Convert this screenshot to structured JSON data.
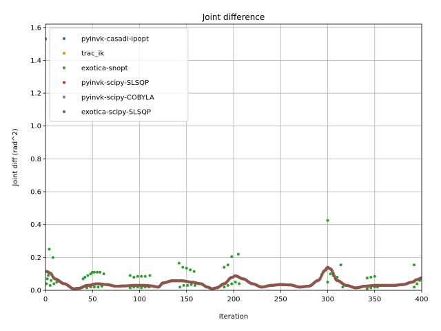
{
  "chart_data": {
    "type": "scatter",
    "title": "Joint difference",
    "xlabel": "Iteration",
    "ylabel": "Joint diff (rad^2)",
    "xlim": [
      0,
      400
    ],
    "ylim": [
      0,
      1.62
    ],
    "xticks": [
      0,
      50,
      100,
      150,
      200,
      250,
      300,
      350,
      400
    ],
    "yticks": [
      0.0,
      0.2,
      0.4,
      0.6,
      0.8,
      1.0,
      1.2,
      1.4,
      1.6
    ],
    "xtick_labels": [
      "0",
      "50",
      "100",
      "150",
      "200",
      "250",
      "300",
      "350",
      "400"
    ],
    "ytick_labels": [
      "0.0",
      "0.2",
      "0.4",
      "0.6",
      "0.8",
      "1.0",
      "1.2",
      "1.4",
      "1.6"
    ],
    "grid": true,
    "legend_position": "upper-left",
    "series": [
      {
        "name": "pyinvk-casadi-ipopt",
        "color": "#1f77b4",
        "curve": "main",
        "points": [
          [
            0,
            1.53
          ]
        ]
      },
      {
        "name": "trac_ik",
        "color": "#ff7f0e",
        "curve": "main",
        "points": [
          [
            0,
            1.53
          ]
        ]
      },
      {
        "name": "exotica-snopt",
        "color": "#2ca02c",
        "curve": "main",
        "points": [
          [
            0,
            1.53
          ],
          [
            1,
            0.04
          ],
          [
            2,
            0.07
          ],
          [
            3,
            0.09
          ],
          [
            4,
            0.25
          ],
          [
            5,
            0.03
          ],
          [
            6,
            0.06
          ],
          [
            8,
            0.2
          ],
          [
            9,
            0.04
          ],
          [
            10,
            0.07
          ],
          [
            12,
            0.05
          ],
          [
            40,
            0.07
          ],
          [
            42,
            0.08
          ],
          [
            45,
            0.09
          ],
          [
            48,
            0.1
          ],
          [
            50,
            0.11
          ],
          [
            52,
            0.11
          ],
          [
            55,
            0.11
          ],
          [
            58,
            0.11
          ],
          [
            62,
            0.1
          ],
          [
            40,
            0.02
          ],
          [
            44,
            0.015
          ],
          [
            48,
            0.02
          ],
          [
            52,
            0.02
          ],
          [
            56,
            0.02
          ],
          [
            60,
            0.025
          ],
          [
            90,
            0.09
          ],
          [
            94,
            0.08
          ],
          [
            98,
            0.085
          ],
          [
            102,
            0.085
          ],
          [
            106,
            0.085
          ],
          [
            111,
            0.09
          ],
          [
            90,
            0.015
          ],
          [
            94,
            0.02
          ],
          [
            98,
            0.02
          ],
          [
            102,
            0.015
          ],
          [
            106,
            0.02
          ],
          [
            110,
            0.02
          ],
          [
            142,
            0.165
          ],
          [
            146,
            0.14
          ],
          [
            150,
            0.135
          ],
          [
            154,
            0.125
          ],
          [
            158,
            0.115
          ],
          [
            143,
            0.02
          ],
          [
            147,
            0.03
          ],
          [
            151,
            0.03
          ],
          [
            155,
            0.035
          ],
          [
            159,
            0.03
          ],
          [
            190,
            0.14
          ],
          [
            194,
            0.155
          ],
          [
            198,
            0.205
          ],
          [
            205,
            0.22
          ],
          [
            190,
            0.02
          ],
          [
            194,
            0.03
          ],
          [
            198,
            0.04
          ],
          [
            202,
            0.05
          ],
          [
            206,
            0.04
          ],
          [
            300,
            0.425
          ],
          [
            300,
            0.05
          ],
          [
            303,
            0.1
          ],
          [
            306,
            0.09
          ],
          [
            310,
            0.08
          ],
          [
            314,
            0.155
          ],
          [
            316,
            0.02
          ],
          [
            319,
            0.03
          ],
          [
            342,
            0.075
          ],
          [
            346,
            0.08
          ],
          [
            350,
            0.085
          ],
          [
            342,
            0.01
          ],
          [
            346,
            0.015
          ],
          [
            350,
            0.02
          ],
          [
            353,
            0.02
          ],
          [
            392,
            0.155
          ],
          [
            392,
            0.02
          ],
          [
            395,
            0.04
          ],
          [
            398,
            0.06
          ]
        ]
      },
      {
        "name": "pyinvk-scipy-SLSQP",
        "color": "#d62728",
        "curve": "main",
        "points": [
          [
            0,
            1.53
          ]
        ]
      },
      {
        "name": "pyinvk-scipy-COBYLA",
        "color": "#9467bd",
        "curve": "main",
        "points": [
          [
            0,
            1.53
          ]
        ]
      },
      {
        "name": "exotica-scipy-SLSQP",
        "color": "#8c564b",
        "curve": "main",
        "points": [
          [
            0,
            1.53
          ]
        ]
      }
    ],
    "shared_curve": {
      "id": "main",
      "x_step": 1,
      "knots": [
        [
          1,
          0.115
        ],
        [
          5,
          0.105
        ],
        [
          10,
          0.07
        ],
        [
          20,
          0.04
        ],
        [
          30,
          0.01
        ],
        [
          35,
          0.012
        ],
        [
          45,
          0.03
        ],
        [
          55,
          0.04
        ],
        [
          65,
          0.035
        ],
        [
          75,
          0.025
        ],
        [
          85,
          0.027
        ],
        [
          95,
          0.03
        ],
        [
          105,
          0.03
        ],
        [
          112,
          0.027
        ],
        [
          120,
          0.02
        ],
        [
          125,
          0.045
        ],
        [
          135,
          0.058
        ],
        [
          145,
          0.058
        ],
        [
          155,
          0.05
        ],
        [
          165,
          0.04
        ],
        [
          172,
          0.02
        ],
        [
          177,
          0.01
        ],
        [
          182,
          0.015
        ],
        [
          190,
          0.04
        ],
        [
          198,
          0.078
        ],
        [
          202,
          0.088
        ],
        [
          210,
          0.07
        ],
        [
          220,
          0.04
        ],
        [
          230,
          0.02
        ],
        [
          240,
          0.03
        ],
        [
          250,
          0.035
        ],
        [
          260,
          0.033
        ],
        [
          270,
          0.02
        ],
        [
          280,
          0.025
        ],
        [
          290,
          0.06
        ],
        [
          297,
          0.12
        ],
        [
          300,
          0.14
        ],
        [
          303,
          0.13
        ],
        [
          310,
          0.06
        ],
        [
          320,
          0.03
        ],
        [
          330,
          0.015
        ],
        [
          340,
          0.025
        ],
        [
          350,
          0.03
        ],
        [
          360,
          0.03
        ],
        [
          370,
          0.03
        ],
        [
          380,
          0.035
        ],
        [
          390,
          0.05
        ],
        [
          395,
          0.065
        ],
        [
          400,
          0.075
        ]
      ]
    }
  }
}
